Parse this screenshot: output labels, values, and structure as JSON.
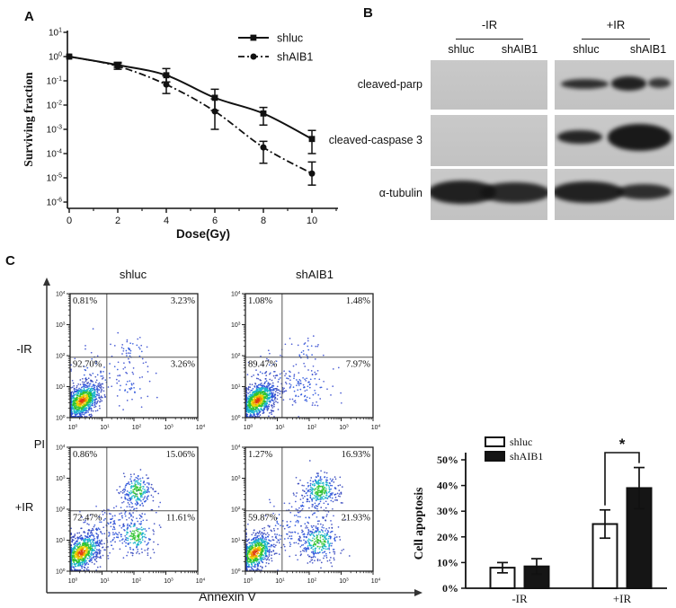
{
  "panels": {
    "a_label": "A",
    "b_label": "B",
    "c_label": "C"
  },
  "panel_b": {
    "group_headers": [
      "-IR",
      "+IR"
    ],
    "lane_labels": [
      "shluc",
      "shAIB1",
      "shluc",
      "shAIB1"
    ],
    "rows": [
      {
        "label": "cleaved-parp",
        "bands_minus": [],
        "bands_plus": [
          {
            "x": 0.05,
            "y": 0.38,
            "w": 0.4,
            "h": 0.2,
            "a": 0.85
          },
          {
            "x": 0.47,
            "y": 0.33,
            "w": 0.3,
            "h": 0.28,
            "a": 0.92
          },
          {
            "x": 0.78,
            "y": 0.37,
            "w": 0.19,
            "h": 0.2,
            "a": 0.8
          }
        ]
      },
      {
        "label": "cleaved-caspase 3",
        "bands_minus": [],
        "bands_plus": [
          {
            "x": 0.02,
            "y": 0.3,
            "w": 0.38,
            "h": 0.26,
            "a": 0.9
          },
          {
            "x": 0.44,
            "y": 0.18,
            "w": 0.54,
            "h": 0.52,
            "a": 0.97
          }
        ]
      },
      {
        "label": "α-tubulin",
        "bands_minus": [
          {
            "x": -0.02,
            "y": 0.22,
            "w": 0.58,
            "h": 0.46,
            "a": 0.93
          },
          {
            "x": 0.42,
            "y": 0.26,
            "w": 0.6,
            "h": 0.4,
            "a": 0.88
          }
        ],
        "bands_plus": [
          {
            "x": -0.02,
            "y": 0.25,
            "w": 0.6,
            "h": 0.42,
            "a": 0.92
          },
          {
            "x": 0.52,
            "y": 0.3,
            "w": 0.46,
            "h": 0.3,
            "a": 0.85
          }
        ]
      }
    ]
  },
  "panel_c": {
    "col_headers": [
      "shluc",
      "shAIB1"
    ],
    "row_labels": [
      "-IR",
      "+IR"
    ],
    "ylabel": "PI",
    "xlabel": "Annexin V"
  },
  "chart_data": [
    {
      "id": "survival_curve",
      "type": "line",
      "panel": "A",
      "xlabel": "Dose(Gy)",
      "ylabel": "Surviving fraction",
      "x": [
        0,
        2,
        4,
        6,
        8,
        10
      ],
      "xticks": [
        0,
        2,
        4,
        6,
        8,
        10
      ],
      "x_minor_ticks": [
        1,
        3,
        5,
        7,
        9,
        11
      ],
      "y_scale": "log",
      "ytick_exponents": [
        1,
        0,
        -1,
        -2,
        -3,
        -4,
        -5,
        -6
      ],
      "legend_position": "top-right",
      "series": [
        {
          "name": "shluc",
          "marker": "square",
          "line_style": "solid",
          "values": [
            1.0,
            0.45,
            0.17,
            0.02,
            0.0045,
            0.0004
          ],
          "err_lo": [
            null,
            0.36,
            0.09,
            0.006,
            0.0015,
            0.0001
          ],
          "err_hi": [
            null,
            0.58,
            0.32,
            0.045,
            0.008,
            0.0009
          ]
        },
        {
          "name": "shAIB1",
          "marker": "circle",
          "line_style": "dash-dot",
          "values": [
            1.0,
            0.4,
            0.07,
            0.0055,
            0.00018,
            1.5e-05
          ],
          "err_lo": [
            null,
            0.3,
            0.03,
            0.001,
            4e-05,
            5e-06
          ],
          "err_hi": [
            null,
            0.52,
            0.16,
            0.018,
            0.00032,
            4.5e-05
          ]
        }
      ]
    },
    {
      "id": "flow_minusIR_shluc",
      "type": "scatter",
      "panel": "C",
      "condition": "-IR",
      "cell_line": "shluc",
      "axis_decades": [
        0,
        4
      ],
      "gate": {
        "x_decade": 1.15,
        "y_decade": 1.95
      },
      "quadrant_percent": {
        "UL": "0.81%",
        "UR": "3.23%",
        "LL": "92.70%",
        "LR": "3.26%"
      },
      "seed": 11,
      "clusters": [
        {
          "cx": 0.38,
          "cy": 0.55,
          "sx": 0.3,
          "sy": 0.3,
          "n": 950,
          "density": 3,
          "corr": 0.45
        },
        {
          "cx": 0.9,
          "cy": 1.5,
          "sx": 0.5,
          "sy": 0.4,
          "n": 55,
          "density": 1,
          "corr": 0
        },
        {
          "cx": 1.95,
          "cy": 2.15,
          "sx": 0.28,
          "sy": 0.22,
          "n": 35,
          "density": 1,
          "corr": 0
        },
        {
          "cx": 1.9,
          "cy": 1.0,
          "sx": 0.35,
          "sy": 0.3,
          "n": 40,
          "density": 1,
          "corr": 0
        }
      ]
    },
    {
      "id": "flow_minusIR_shAIB1",
      "type": "scatter",
      "panel": "C",
      "condition": "-IR",
      "cell_line": "shAIB1",
      "axis_decades": [
        0,
        4
      ],
      "gate": {
        "x_decade": 1.15,
        "y_decade": 1.95
      },
      "quadrant_percent": {
        "UL": "1.08%",
        "UR": "1.48%",
        "LL": "89.47%",
        "LR": "7.97%"
      },
      "seed": 22,
      "clusters": [
        {
          "cx": 0.38,
          "cy": 0.55,
          "sx": 0.3,
          "sy": 0.3,
          "n": 950,
          "density": 3,
          "corr": 0.45
        },
        {
          "cx": 1.0,
          "cy": 1.4,
          "sx": 0.45,
          "sy": 0.4,
          "n": 50,
          "density": 1,
          "corr": 0
        },
        {
          "cx": 1.9,
          "cy": 2.1,
          "sx": 0.3,
          "sy": 0.25,
          "n": 30,
          "density": 1,
          "corr": 0
        },
        {
          "cx": 1.85,
          "cy": 0.95,
          "sx": 0.45,
          "sy": 0.35,
          "n": 100,
          "density": 1,
          "corr": 0
        }
      ]
    },
    {
      "id": "flow_plusIR_shluc",
      "type": "scatter",
      "panel": "C",
      "condition": "+IR",
      "cell_line": "shluc",
      "axis_decades": [
        0,
        4
      ],
      "gate": {
        "x_decade": 1.15,
        "y_decade": 1.95
      },
      "quadrant_percent": {
        "UL": "0.86%",
        "UR": "15.06%",
        "LL": "72.47%",
        "LR": "11.61%"
      },
      "seed": 33,
      "clusters": [
        {
          "cx": 0.35,
          "cy": 0.6,
          "sx": 0.32,
          "sy": 0.32,
          "n": 800,
          "density": 3,
          "corr": 0.45
        },
        {
          "cx": 1.2,
          "cy": 1.3,
          "sx": 0.5,
          "sy": 0.45,
          "n": 120,
          "density": 1,
          "corr": 0
        },
        {
          "cx": 1.9,
          "cy": 2.0,
          "sx": 0.5,
          "sy": 0.4,
          "n": 60,
          "density": 1,
          "corr": 0
        },
        {
          "cx": 2.1,
          "cy": 2.6,
          "sx": 0.25,
          "sy": 0.3,
          "n": 200,
          "density": 2,
          "corr": 0
        },
        {
          "cx": 2.05,
          "cy": 1.15,
          "sx": 0.28,
          "sy": 0.3,
          "n": 180,
          "density": 2,
          "corr": 0
        }
      ]
    },
    {
      "id": "flow_plusIR_shAIB1",
      "type": "scatter",
      "panel": "C",
      "condition": "+IR",
      "cell_line": "shAIB1",
      "axis_decades": [
        0,
        4
      ],
      "gate": {
        "x_decade": 1.15,
        "y_decade": 1.95
      },
      "quadrant_percent": {
        "UL": "1.27%",
        "UR": "16.93%",
        "LL": "59.87%",
        "LR": "21.93%"
      },
      "seed": 44,
      "clusters": [
        {
          "cx": 0.3,
          "cy": 0.6,
          "sx": 0.3,
          "sy": 0.32,
          "n": 700,
          "density": 3,
          "corr": 0.45
        },
        {
          "cx": 1.4,
          "cy": 1.4,
          "sx": 0.5,
          "sy": 0.45,
          "n": 100,
          "density": 1,
          "corr": 0
        },
        {
          "cx": 2.0,
          "cy": 1.9,
          "sx": 0.4,
          "sy": 0.35,
          "n": 50,
          "density": 1,
          "corr": 0
        },
        {
          "cx": 2.35,
          "cy": 2.6,
          "sx": 0.28,
          "sy": 0.3,
          "n": 280,
          "density": 2,
          "corr": 0
        },
        {
          "cx": 2.3,
          "cy": 0.95,
          "sx": 0.33,
          "sy": 0.3,
          "n": 280,
          "density": 2,
          "corr": 0
        }
      ]
    },
    {
      "id": "apoptosis_bar",
      "type": "bar",
      "panel": "C",
      "ylabel": "Cell apoptosis",
      "categories": [
        "-IR",
        "+IR"
      ],
      "ytick_labels": [
        "0%",
        "10%",
        "20%",
        "30%",
        "40%",
        "50%"
      ],
      "ylim": [
        0,
        50
      ],
      "legend_position": "top-left",
      "series": [
        {
          "name": "shluc",
          "fill": "white",
          "values": [
            8,
            25
          ],
          "err": [
            2,
            5.5
          ]
        },
        {
          "name": "shAIB1",
          "fill": "black",
          "values": [
            8.5,
            39
          ],
          "err": [
            3,
            8
          ]
        }
      ],
      "significance": {
        "label": "*",
        "category": "+IR"
      }
    }
  ]
}
